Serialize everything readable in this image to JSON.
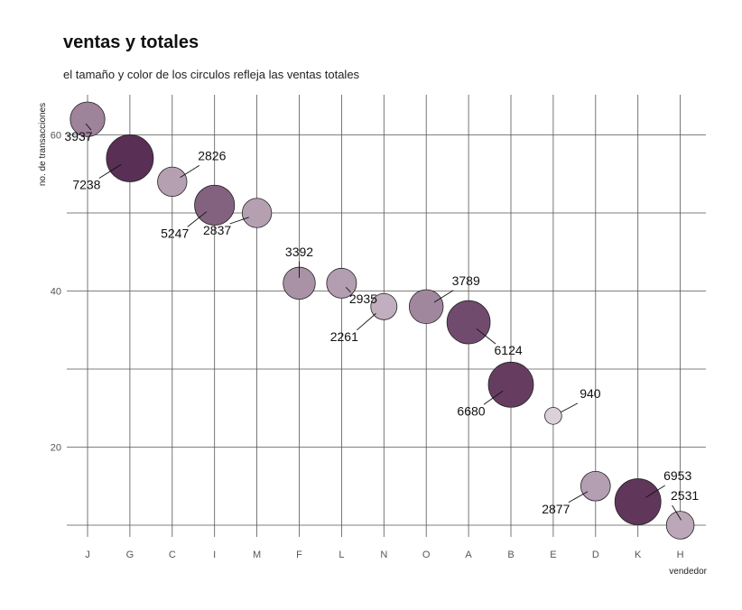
{
  "chart_data": {
    "type": "scatter",
    "title": "ventas y totales",
    "subtitle": "el tamaño y color de los circulos refleja las ventas totales",
    "xlabel": "vendedor",
    "ylabel": "no. de transacciones",
    "categories": [
      "J",
      "G",
      "C",
      "I",
      "M",
      "F",
      "L",
      "N",
      "O",
      "A",
      "B",
      "E",
      "D",
      "K",
      "H"
    ],
    "ylim": [
      8,
      63
    ],
    "yticks": [
      20,
      40,
      60
    ],
    "grid": true,
    "legend": "none",
    "points": [
      {
        "x": "J",
        "y": 62,
        "value": 3937
      },
      {
        "x": "G",
        "y": 57,
        "value": 7238
      },
      {
        "x": "C",
        "y": 54,
        "value": 2826
      },
      {
        "x": "I",
        "y": 51,
        "value": 5247
      },
      {
        "x": "M",
        "y": 50,
        "value": 2837
      },
      {
        "x": "F",
        "y": 41,
        "value": 3392
      },
      {
        "x": "L",
        "y": 41,
        "value": 2935
      },
      {
        "x": "N",
        "y": 38,
        "value": 2261
      },
      {
        "x": "O",
        "y": 38,
        "value": 3789
      },
      {
        "x": "A",
        "y": 36,
        "value": 6124
      },
      {
        "x": "B",
        "y": 28,
        "value": 6680
      },
      {
        "x": "E",
        "y": 24,
        "value": 940
      },
      {
        "x": "D",
        "y": 15,
        "value": 2877
      },
      {
        "x": "K",
        "y": 13,
        "value": 6953
      },
      {
        "x": "H",
        "y": 10,
        "value": 2531
      }
    ],
    "color_low": "#dcd0da",
    "color_high": "#5a2f55"
  }
}
